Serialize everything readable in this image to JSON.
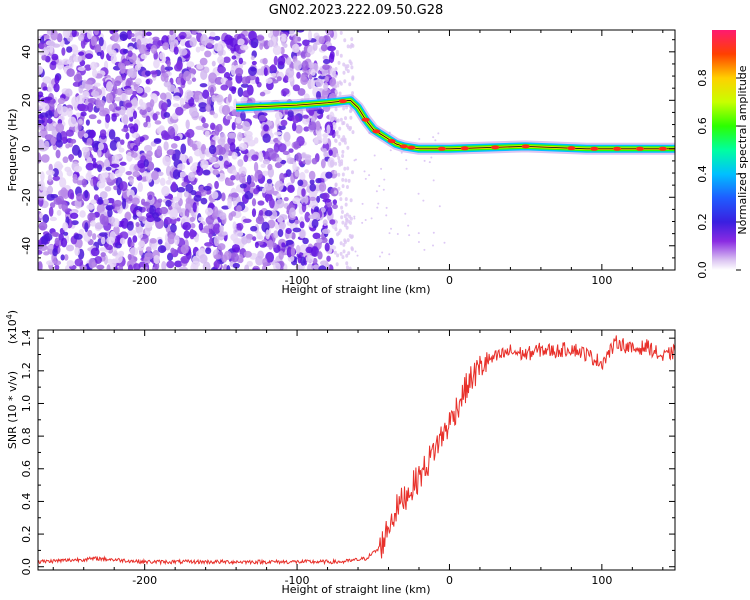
{
  "title": "GN02.2023.222.09.50.G28",
  "chart_data": [
    {
      "type": "heatmap",
      "xlabel": "Height of straight line (km)",
      "ylabel": "Frequency (Hz)",
      "xlim": [
        -270,
        148
      ],
      "ylim": [
        -50,
        49
      ],
      "xticks": [
        -200,
        -100,
        0,
        100
      ],
      "yticks": [
        -40,
        -20,
        0,
        20,
        40
      ],
      "colorbar": {
        "label": "Normalized spectral amplitude",
        "range": [
          0,
          1
        ],
        "ticks": [
          0.0,
          0.2,
          0.4,
          0.6,
          0.8
        ],
        "colormap": "rainbow (violet to red-magenta)"
      },
      "ridge": [
        {
          "x": -140,
          "y": 17
        },
        {
          "x": -100,
          "y": 18
        },
        {
          "x": -80,
          "y": 19
        },
        {
          "x": -65,
          "y": 20
        },
        {
          "x": -60,
          "y": 17
        },
        {
          "x": -55,
          "y": 12
        },
        {
          "x": -50,
          "y": 8
        },
        {
          "x": -45,
          "y": 6
        },
        {
          "x": -40,
          "y": 4
        },
        {
          "x": -35,
          "y": 2
        },
        {
          "x": -30,
          "y": 1
        },
        {
          "x": -20,
          "y": 0
        },
        {
          "x": 0,
          "y": 0
        },
        {
          "x": 50,
          "y": 1
        },
        {
          "x": 90,
          "y": 0
        },
        {
          "x": 148,
          "y": 0
        }
      ]
    },
    {
      "type": "line",
      "xlabel": "Height of straight line (km)",
      "ylabel": "SNR (10 * v/v)",
      "ylabel_scale": "(x10",
      "ylabel_exp": "4",
      "ylabel_scale_close": ")",
      "xlim": [
        -270,
        148
      ],
      "ylim": [
        -0.02,
        1.45
      ],
      "xticks": [
        -200,
        -100,
        0,
        100
      ],
      "yticks": [
        0.0,
        0.2,
        0.4,
        0.6,
        0.8,
        1.0,
        1.2,
        1.4
      ],
      "color": "#e8302a",
      "series": [
        {
          "x": [
            -270,
            -230,
            -200,
            -150,
            -100,
            -70,
            -55,
            -45,
            -40,
            -35,
            -30,
            -25,
            -20,
            -15,
            -10,
            -5,
            0,
            5,
            10,
            15,
            20,
            25,
            30,
            40,
            50,
            60,
            70,
            80,
            90,
            100,
            110,
            120,
            130,
            140,
            148
          ],
          "y": [
            0.03,
            0.05,
            0.03,
            0.03,
            0.03,
            0.03,
            0.05,
            0.12,
            0.25,
            0.35,
            0.42,
            0.48,
            0.55,
            0.62,
            0.72,
            0.8,
            0.88,
            0.98,
            1.08,
            1.16,
            1.22,
            1.26,
            1.28,
            1.32,
            1.3,
            1.33,
            1.32,
            1.34,
            1.3,
            1.25,
            1.38,
            1.33,
            1.35,
            1.28,
            1.32
          ]
        }
      ]
    }
  ]
}
